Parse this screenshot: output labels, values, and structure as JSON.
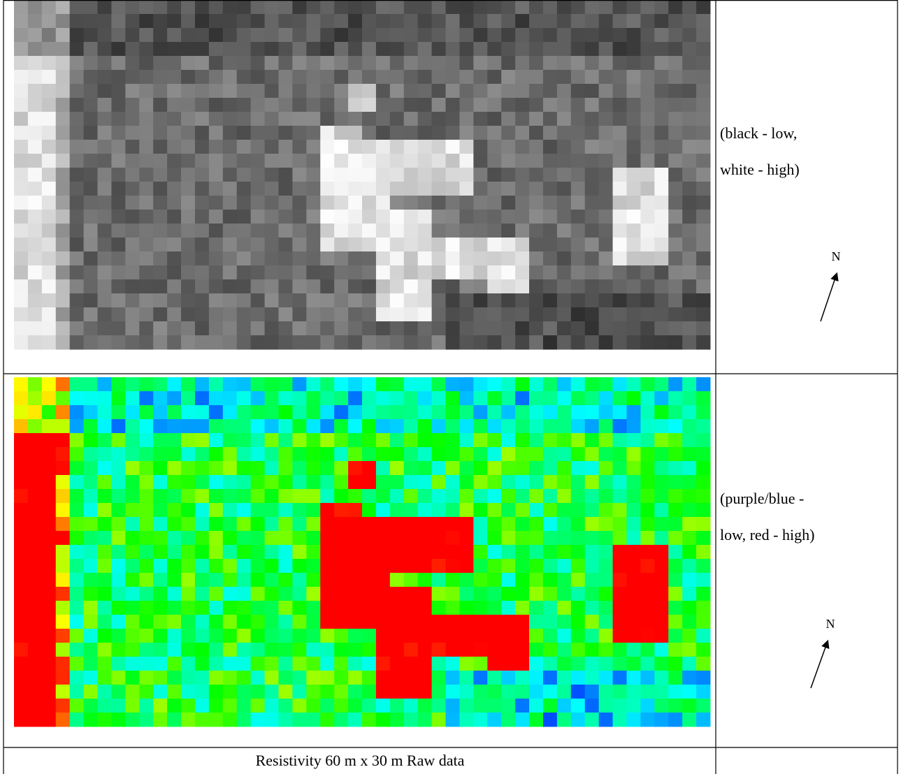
{
  "panels": [
    {
      "legend": [
        "(black - low,",
        "white - high)"
      ],
      "north": "N"
    },
    {
      "legend": [
        "(purple/blue -",
        "low, red - high)"
      ],
      "north": "N"
    }
  ],
  "caption": "Resistivity 60 m x 30 m Raw data"
}
